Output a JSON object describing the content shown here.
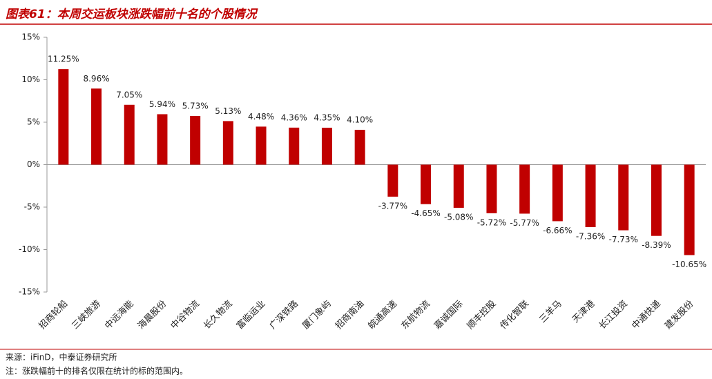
{
  "chart_data": {
    "type": "bar",
    "title": "图表61：本周交运板块涨跌幅前十名的个股情况",
    "categories": [
      "招商轮船",
      "三峡旅游",
      "中远海能",
      "海晨股份",
      "中谷物流",
      "长久物流",
      "富临运业",
      "广深铁路",
      "厦门象屿",
      "招商南油",
      "皖通高速",
      "东航物流",
      "嘉诚国际",
      "顺丰控股",
      "传化智联",
      "三羊马",
      "天津港",
      "长江投资",
      "中通快递",
      "建发股份"
    ],
    "values": [
      11.25,
      8.96,
      7.05,
      5.94,
      5.73,
      5.13,
      4.48,
      4.36,
      4.35,
      4.1,
      -3.77,
      -4.65,
      -5.08,
      -5.72,
      -5.77,
      -6.66,
      -7.36,
      -7.73,
      -8.39,
      -10.65
    ],
    "value_labels": [
      "11.25%",
      "8.96%",
      "7.05%",
      "5.94%",
      "5.73%",
      "5.13%",
      "4.48%",
      "4.36%",
      "4.35%",
      "4.10%",
      "-3.77%",
      "-4.65%",
      "-5.08%",
      "-5.72%",
      "-5.77%",
      "-6.66%",
      "-7.36%",
      "-7.73%",
      "-8.39%",
      "-10.65%"
    ],
    "color": "#c00000",
    "ylim": [
      -15,
      15
    ],
    "yticks": [
      {
        "value": -15,
        "label": "-15%"
      },
      {
        "value": -10,
        "label": "-10%"
      },
      {
        "value": -5,
        "label": "-5%"
      },
      {
        "value": 0,
        "label": "0%"
      },
      {
        "value": 5,
        "label": "5%"
      },
      {
        "value": 10,
        "label": "10%"
      },
      {
        "value": 15,
        "label": "15%"
      }
    ],
    "grid": false,
    "source": "来源：iFinD，中泰证券研究所",
    "note": "注：涨跌幅前十的排名仅限在统计的标的范围内。"
  }
}
